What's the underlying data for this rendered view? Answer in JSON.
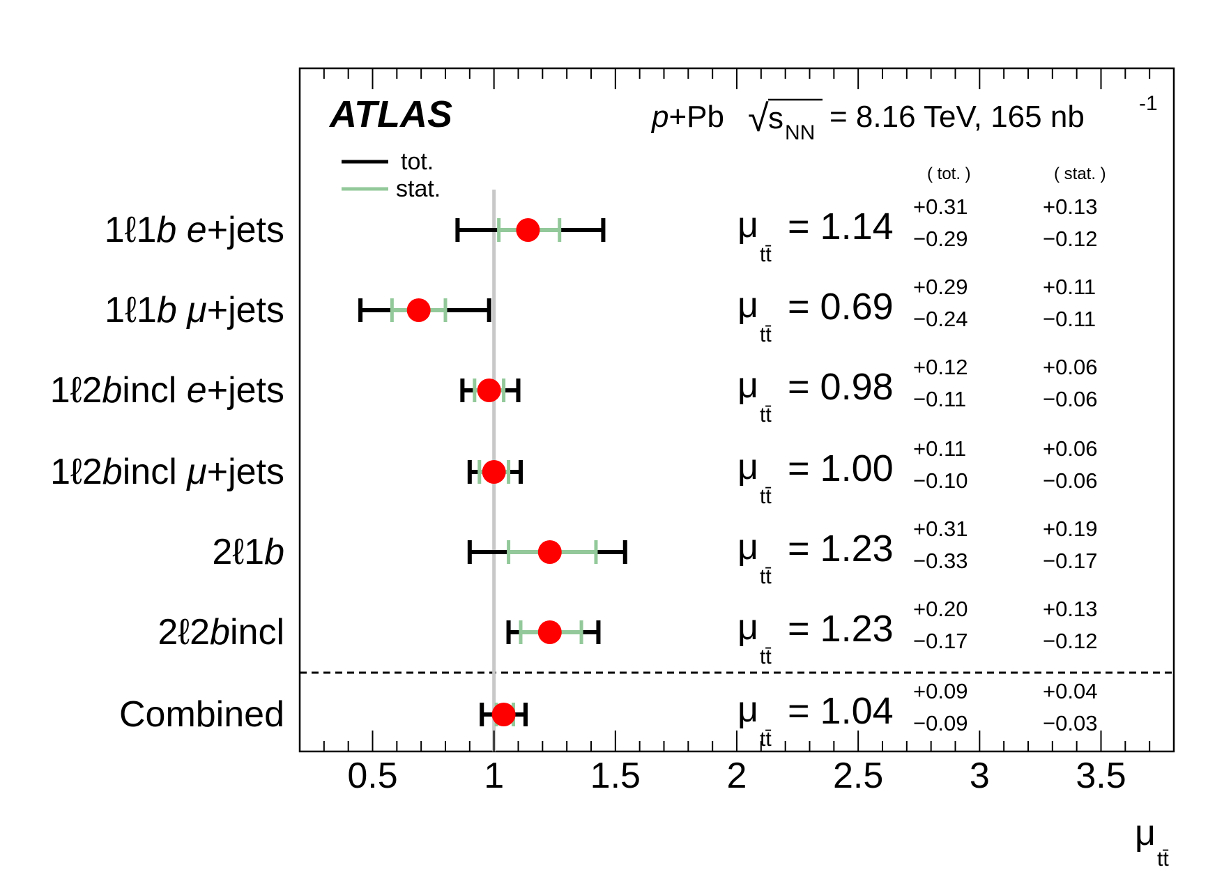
{
  "chart_data": {
    "type": "forest",
    "experiment": "ATLAS",
    "header": {
      "system_p": "p",
      "system_rest": "+Pb",
      "sqrt_symbol": "√",
      "s": "s",
      "s_sub": "NN",
      "energy": "= 8.16 TeV, 165 nb",
      "lumi_exp": "-1"
    },
    "legend": [
      {
        "label": "tot.",
        "color": "#000000"
      },
      {
        "label": "stat.",
        "color": "#93c99a"
      }
    ],
    "column_headers": {
      "tot": "( tot. )",
      "stat": "( stat. )"
    },
    "mu_symbol": "μ",
    "mu_sub": "tt̄",
    "xlabel": {
      "symbol": "μ",
      "sub": "tt̄"
    },
    "xlim": [
      0.2,
      3.8
    ],
    "xticks": [
      "0.5",
      "1",
      "1.5",
      "2",
      "2.5",
      "3",
      "3.5"
    ],
    "reference_line": 1.0,
    "reference_color": "#c8c8c8",
    "point_color": "#ff0000",
    "stat_color": "#93c99a",
    "tot_color": "#000000",
    "rows": [
      {
        "label_pre": "1ℓ1",
        "label_b": "b",
        "label_post": " ",
        "label_lep": "e",
        "label_tail": "+jets",
        "value": 1.14,
        "value_text": "= 1.14",
        "tot_up": 0.31,
        "tot_dn": 0.29,
        "stat_up": 0.13,
        "stat_dn": 0.12,
        "tot_up_text": "+0.31",
        "tot_dn_text": "−0.29",
        "stat_up_text": "+0.13",
        "stat_dn_text": "−0.12"
      },
      {
        "label_pre": "1ℓ1",
        "label_b": "b",
        "label_post": " ",
        "label_lep": "μ",
        "label_tail": "+jets",
        "value": 0.69,
        "value_text": "= 0.69",
        "tot_up": 0.29,
        "tot_dn": 0.24,
        "stat_up": 0.11,
        "stat_dn": 0.11,
        "tot_up_text": "+0.29",
        "tot_dn_text": "−0.24",
        "stat_up_text": "+0.11",
        "stat_dn_text": "−0.11"
      },
      {
        "label_pre": "1ℓ2",
        "label_b": "b",
        "label_post": "incl ",
        "label_lep": "e",
        "label_tail": "+jets",
        "value": 0.98,
        "value_text": "= 0.98",
        "tot_up": 0.12,
        "tot_dn": 0.11,
        "stat_up": 0.06,
        "stat_dn": 0.06,
        "tot_up_text": "+0.12",
        "tot_dn_text": "−0.11",
        "stat_up_text": "+0.06",
        "stat_dn_text": "−0.06"
      },
      {
        "label_pre": "1ℓ2",
        "label_b": "b",
        "label_post": "incl ",
        "label_lep": "μ",
        "label_tail": "+jets",
        "value": 1.0,
        "value_text": "= 1.00",
        "tot_up": 0.11,
        "tot_dn": 0.1,
        "stat_up": 0.06,
        "stat_dn": 0.06,
        "tot_up_text": "+0.11",
        "tot_dn_text": "−0.10",
        "stat_up_text": "+0.06",
        "stat_dn_text": "−0.06"
      },
      {
        "label_pre": "2ℓ1",
        "label_b": "b",
        "label_post": "",
        "label_lep": "",
        "label_tail": "",
        "value": 1.23,
        "value_text": "= 1.23",
        "tot_up": 0.31,
        "tot_dn": 0.33,
        "stat_up": 0.19,
        "stat_dn": 0.17,
        "tot_up_text": "+0.31",
        "tot_dn_text": "−0.33",
        "stat_up_text": "+0.19",
        "stat_dn_text": "−0.17"
      },
      {
        "label_pre": "2ℓ2",
        "label_b": "b",
        "label_post": "incl",
        "label_lep": "",
        "label_tail": "",
        "value": 1.23,
        "value_text": "= 1.23",
        "tot_up": 0.2,
        "tot_dn": 0.17,
        "stat_up": 0.13,
        "stat_dn": 0.12,
        "tot_up_text": "+0.20",
        "tot_dn_text": "−0.17",
        "stat_up_text": "+0.13",
        "stat_dn_text": "−0.12"
      },
      {
        "label_pre": "Combined",
        "label_b": "",
        "label_post": "",
        "label_lep": "",
        "label_tail": "",
        "value": 1.04,
        "value_text": "= 1.04",
        "tot_up": 0.09,
        "tot_dn": 0.09,
        "stat_up": 0.04,
        "stat_dn": 0.03,
        "tot_up_text": "+0.09",
        "tot_dn_text": "−0.09",
        "stat_up_text": "+0.04",
        "stat_dn_text": "−0.03"
      }
    ]
  }
}
